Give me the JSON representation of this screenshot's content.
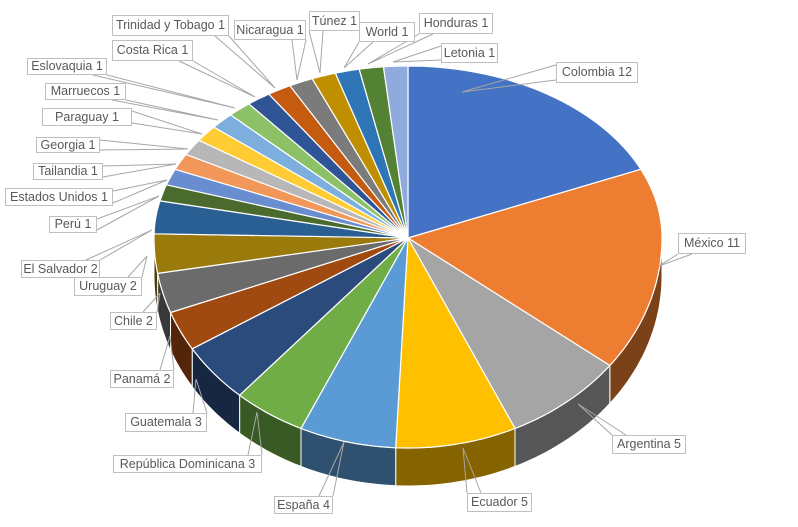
{
  "chart_data": {
    "type": "pie",
    "style": "3d",
    "title": "",
    "total": 65,
    "legend": "none",
    "label_format": "category value",
    "leader_line_color": "#A6A6A6",
    "label_border_color": "#BFBFBF",
    "label_text_color": "#595959",
    "background_color": "#FFFFFF",
    "slices": [
      {
        "label": "Colombia",
        "value": 12,
        "color": "#4472C4",
        "display": "Colombia 12"
      },
      {
        "label": "México",
        "value": 11,
        "color": "#ED7D31",
        "display": "México 11"
      },
      {
        "label": "Argentina",
        "value": 5,
        "color": "#A5A5A5",
        "display": "Argentina 5"
      },
      {
        "label": "Ecuador",
        "value": 5,
        "color": "#FFC000",
        "display": "Ecuador 5"
      },
      {
        "label": "España",
        "value": 4,
        "color": "#5B9BD5",
        "display": "España 4"
      },
      {
        "label": "República Dominicana",
        "value": 3,
        "color": "#70AD47",
        "display": "República Dominicana 3"
      },
      {
        "label": "Guatemala",
        "value": 3,
        "color": "#2C4B7D",
        "display": "Guatemala 3"
      },
      {
        "label": "Panamá",
        "value": 2,
        "color": "#A04A11",
        "display": "Panamá 2"
      },
      {
        "label": "Chile",
        "value": 2,
        "color": "#6B6B6B",
        "display": "Chile 2"
      },
      {
        "label": "Uruguay",
        "value": 2,
        "color": "#9A7A0A",
        "display": "Uruguay 2"
      },
      {
        "label": "El Salvador",
        "value": 2,
        "color": "#2A5F93",
        "display": "El Salvador 2"
      },
      {
        "label": "Perú",
        "value": 1,
        "color": "#4A6B2D",
        "display": "Perú 1"
      },
      {
        "label": "Estados Unidos",
        "value": 1,
        "color": "#698ED0",
        "display": "Estados Unidos 1"
      },
      {
        "label": "Tailandia",
        "value": 1,
        "color": "#F1975A",
        "display": "Tailandia 1"
      },
      {
        "label": "Georgia",
        "value": 1,
        "color": "#B7B7B7",
        "display": "Georgia 1"
      },
      {
        "label": "Paraguay",
        "value": 1,
        "color": "#FFCD33",
        "display": "Paraguay 1"
      },
      {
        "label": "Marruecos",
        "value": 1,
        "color": "#7CAFDD",
        "display": "Marruecos 1"
      },
      {
        "label": "Eslovaquia",
        "value": 1,
        "color": "#8CC168",
        "display": "Eslovaquia 1"
      },
      {
        "label": "Costa Rica",
        "value": 1,
        "color": "#2F5597",
        "display": "Costa Rica 1"
      },
      {
        "label": "Trinidad y Tobago",
        "value": 1,
        "color": "#C55A11",
        "display": "Trinidad y Tobago 1"
      },
      {
        "label": "Nicaragua",
        "value": 1,
        "color": "#7B7B7B",
        "display": "Nicaragua 1"
      },
      {
        "label": "Túnez",
        "value": 1,
        "color": "#BF8F00",
        "display": "Túnez 1"
      },
      {
        "label": "World",
        "value": 1,
        "color": "#2E75B6",
        "display": "World 1"
      },
      {
        "label": "Honduras",
        "value": 1,
        "color": "#548235",
        "display": "Honduras 1"
      },
      {
        "label": "Letonia",
        "value": 1,
        "color": "#8FAADC",
        "display": "Letonia 1"
      }
    ]
  }
}
